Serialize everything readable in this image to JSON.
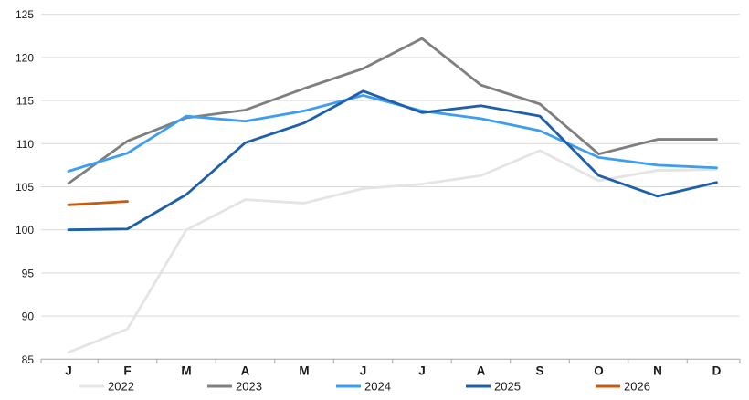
{
  "chart_data": {
    "type": "line",
    "title": "",
    "xlabel": "",
    "ylabel": "",
    "x_categories": [
      "J",
      "F",
      "M",
      "A",
      "M",
      "J",
      "J",
      "A",
      "S",
      "O",
      "N",
      "D"
    ],
    "ylim": [
      85,
      125
    ],
    "ytick_step": 5,
    "y_ticks": [
      85,
      90,
      95,
      100,
      105,
      110,
      115,
      120,
      125
    ],
    "grid": true,
    "legend_position": "bottom",
    "series": [
      {
        "name": "2022",
        "color": "#e4e4e4",
        "values": [
          85.8,
          88.5,
          100.0,
          103.5,
          103.1,
          104.8,
          105.3,
          106.3,
          109.2,
          105.7,
          106.9,
          107.0
        ]
      },
      {
        "name": "2023",
        "color": "#7f7f7f",
        "values": [
          105.4,
          110.3,
          113.0,
          113.9,
          116.4,
          118.7,
          122.2,
          116.8,
          114.6,
          108.8,
          110.5,
          110.5
        ]
      },
      {
        "name": "2024",
        "color": "#3d9df2",
        "values": [
          106.8,
          108.9,
          113.2,
          112.6,
          113.8,
          115.6,
          113.8,
          112.9,
          111.5,
          108.4,
          107.5,
          107.2
        ]
      },
      {
        "name": "2025",
        "color": "#1d5fa9",
        "values": [
          100.0,
          100.1,
          104.1,
          110.1,
          112.4,
          116.1,
          113.6,
          114.4,
          113.2,
          106.3,
          103.9,
          105.5
        ]
      },
      {
        "name": "2026",
        "color": "#c55b11",
        "values": [
          102.9,
          103.3,
          null,
          null,
          null,
          null,
          null,
          null,
          null,
          null,
          null,
          null
        ]
      }
    ],
    "style_colors": {
      "gridline": "#d9d9d9",
      "axis": "#a6a6a6",
      "text": "#1a1a1a",
      "background": "#ffffff"
    }
  }
}
